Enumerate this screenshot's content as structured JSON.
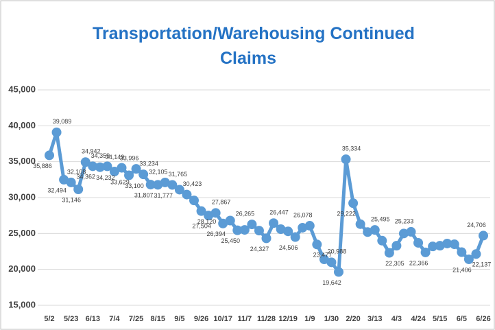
{
  "chart_data": {
    "type": "line",
    "title": "Transportation/Warehousing Continued Claims",
    "categories": [
      "5/2",
      null,
      null,
      "5/23",
      null,
      null,
      "6/13",
      null,
      null,
      "7/4",
      null,
      null,
      "7/25",
      null,
      null,
      "8/15",
      null,
      null,
      "9/5",
      null,
      null,
      "9/26",
      null,
      null,
      "10/17",
      null,
      null,
      "11/7",
      null,
      null,
      "11/28",
      null,
      null,
      "12/19",
      null,
      null,
      "1/9",
      null,
      null,
      "1/30",
      null,
      null,
      "2/20",
      null,
      null,
      "3/13",
      null,
      null,
      "4/3",
      null,
      null,
      "4/24",
      null,
      null,
      "5/15",
      null,
      null,
      "6/5",
      null,
      null,
      "6/26"
    ],
    "series": [
      {
        "name": "Continued Claims",
        "color": "#5b9bd5",
        "values": [
          35886,
          39089,
          32494,
          32108,
          31146,
          34942,
          34362,
          34232,
          34359,
          33629,
          34149,
          33100,
          33996,
          33234,
          31807,
          31777,
          32105,
          31765,
          31100,
          30423,
          29600,
          28120,
          27504,
          27867,
          26394,
          26800,
          25450,
          25500,
          26265,
          25400,
          24327,
          26447,
          25600,
          25300,
          24506,
          25800,
          26078,
          23477,
          21400,
          20988,
          19642,
          35334,
          29222,
          26300,
          25200,
          25495,
          24000,
          22305,
          23300,
          25000,
          25233,
          23700,
          22366,
          23200,
          23300,
          23600,
          23500,
          22400,
          21406,
          22137,
          24706
        ],
        "value_labels": [
          "35,886",
          "39,089",
          "32,494",
          "32,108",
          "31,146",
          "34,942",
          "34,362",
          "34,232",
          "34,359",
          "33,629",
          "34,149",
          "33,100",
          "33,996",
          "33,234",
          "31,807",
          "31,777",
          "32,105",
          "31,765",
          null,
          "30,423",
          null,
          "28,120",
          "27,504",
          "27,867",
          "26,394",
          null,
          "25,450",
          null,
          "26,265",
          null,
          "24,327",
          "26,447",
          null,
          null,
          "24,506",
          null,
          "26,078",
          "23,477",
          null,
          "20,988",
          "19,642",
          "35,334",
          "29,222",
          null,
          null,
          "25,495",
          null,
          "22,305",
          null,
          null,
          "25,233",
          null,
          "22,366",
          null,
          null,
          null,
          null,
          null,
          "21,406",
          "22,137",
          "24,706"
        ]
      }
    ],
    "ylim": [
      15000,
      45000
    ],
    "yticks": [
      {
        "value": 15000,
        "label": "15,000"
      },
      {
        "value": 20000,
        "label": "20,000"
      },
      {
        "value": 25000,
        "label": "25,000"
      },
      {
        "value": 30000,
        "label": "30,000"
      },
      {
        "value": 35000,
        "label": "35,000"
      },
      {
        "value": 40000,
        "label": "40,000"
      },
      {
        "value": 45000,
        "label": "45,000"
      }
    ],
    "grid": true
  }
}
